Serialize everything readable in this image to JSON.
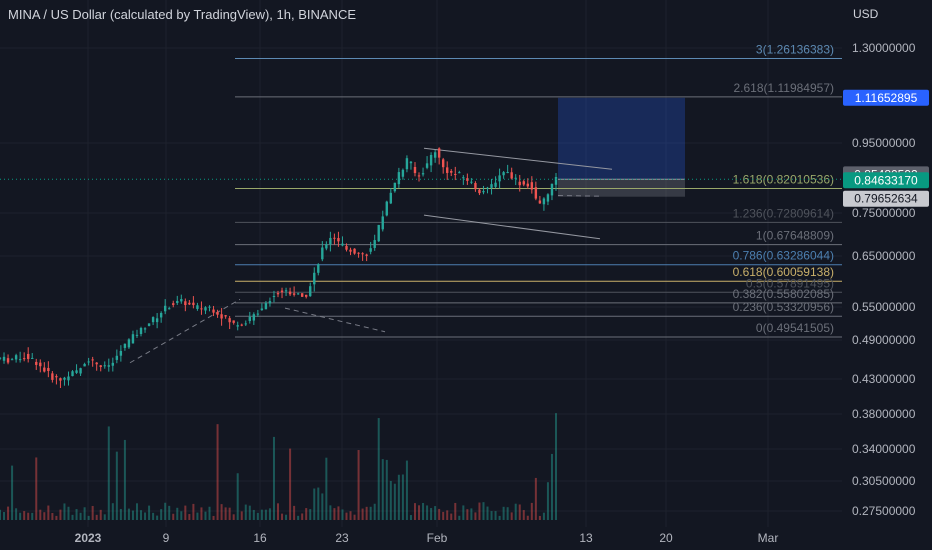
{
  "header": {
    "title": "MINA / US Dollar (calculated by TradingView), 1h, BINANCE",
    "currency": "USD"
  },
  "chart_data": {
    "type": "candlestick",
    "title": "MINA / US Dollar (calculated by TradingView), 1h, BINANCE",
    "y_axis": {
      "range": [
        0.2545,
        1.3675
      ],
      "ticks": [
        {
          "value": 1.3,
          "label": "1.30000000"
        },
        {
          "value": 0.95,
          "label": "0.95000000"
        },
        {
          "value": 0.75,
          "label": "0.75000000"
        },
        {
          "value": 0.65,
          "label": "0.65000000"
        },
        {
          "value": 0.55,
          "label": "0.55000000"
        },
        {
          "value": 0.49,
          "label": "0.49000000"
        },
        {
          "value": 0.43,
          "label": "0.43000000"
        },
        {
          "value": 0.38,
          "label": "0.38000000"
        },
        {
          "value": 0.34,
          "label": "0.34000000"
        },
        {
          "value": 0.305,
          "label": "0.30500000"
        },
        {
          "value": 0.275,
          "label": "0.27500000"
        }
      ]
    },
    "x_axis": {
      "ticks": [
        {
          "label": "2023",
          "bold": true
        },
        {
          "label": "9",
          "bold": false
        },
        {
          "label": "16",
          "bold": false
        },
        {
          "label": "23",
          "bold": false
        },
        {
          "label": "Feb",
          "bold": false
        },
        {
          "label": "13",
          "bold": false
        },
        {
          "label": "20",
          "bold": false
        },
        {
          "label": "Mar",
          "bold": false
        }
      ]
    },
    "fib_levels": [
      {
        "ratio": "3",
        "value": 1.26136383,
        "label": "3(1.26136383)",
        "color": "#5d8ab3"
      },
      {
        "ratio": "2.618",
        "value": 1.11984957,
        "label": "2.618(1.11984957)",
        "color": "#6b6f79"
      },
      {
        "ratio": "1.618",
        "value": 0.82010536,
        "label": "1.618(0.82010536)",
        "color": "#9aa86a"
      },
      {
        "ratio": "1.236",
        "value": 0.72809614,
        "label": "1.236(0.72809614)",
        "color": "#4f535c"
      },
      {
        "ratio": "1",
        "value": 0.67648809,
        "label": "1(0.67648809)",
        "color": "#6b6f79"
      },
      {
        "ratio": "0.786",
        "value": 0.63286044,
        "label": "0.786(0.63286044)",
        "color": "#4c7fb0"
      },
      {
        "ratio": "0.618",
        "value": 0.60059138,
        "label": "0.618(0.60059138)",
        "color": "#c9b06a"
      },
      {
        "ratio": "0.5",
        "value": 0.57891495,
        "label": "0.5(0.57891495)",
        "color": "#4f535c"
      },
      {
        "ratio": "0.382",
        "value": 0.55802085,
        "label": "0.382(0.55802085)",
        "color": "#6b6f79"
      },
      {
        "ratio": "0.236",
        "value": 0.53320956,
        "label": "0.236(0.53320956)",
        "color": "#6b6f79"
      },
      {
        "ratio": "0",
        "value": 0.49541505,
        "label": "0(0.49541505)",
        "color": "#6b6f79"
      }
    ],
    "price_tags": [
      {
        "value": 1.11652895,
        "label": "1.11652895",
        "bg": "#2962ff",
        "fg": "#ffffff"
      },
      {
        "value": 0.85480592,
        "label": "0.85480592",
        "bg": "#5d606b",
        "fg": "#ffffff"
      },
      {
        "value": 0.8463317,
        "label": "0.84633170",
        "bg": "#089981",
        "fg": "#ffffff"
      },
      {
        "value": 0.79652634,
        "label": "0.79652634",
        "bg": "#c8cad0",
        "fg": "#131722"
      }
    ],
    "last_price": 0.8463317,
    "position_box": {
      "entry": 0.8463317,
      "target": 1.11652895,
      "stop": 0.79652634
    },
    "price_path": [
      {
        "t": 0,
        "v": 0.462
      },
      {
        "t": 1,
        "v": 0.459
      },
      {
        "t": 2,
        "v": 0.463
      },
      {
        "t": 3,
        "v": 0.465
      },
      {
        "t": 4,
        "v": 0.458
      },
      {
        "t": 5,
        "v": 0.445
      },
      {
        "t": 6,
        "v": 0.433
      },
      {
        "t": 7,
        "v": 0.428
      },
      {
        "t": 8,
        "v": 0.438
      },
      {
        "t": 9,
        "v": 0.441
      },
      {
        "t": 10,
        "v": 0.462
      },
      {
        "t": 11,
        "v": 0.455
      },
      {
        "t": 12,
        "v": 0.447
      },
      {
        "t": 13,
        "v": 0.455
      },
      {
        "t": 14,
        "v": 0.476
      },
      {
        "t": 15,
        "v": 0.492
      },
      {
        "t": 16,
        "v": 0.505
      },
      {
        "t": 17,
        "v": 0.52
      },
      {
        "t": 18,
        "v": 0.532
      },
      {
        "t": 19,
        "v": 0.548
      },
      {
        "t": 20,
        "v": 0.557
      },
      {
        "t": 21,
        "v": 0.561
      },
      {
        "t": 22,
        "v": 0.552
      },
      {
        "t": 23,
        "v": 0.548
      },
      {
        "t": 24,
        "v": 0.551
      },
      {
        "t": 25,
        "v": 0.541
      },
      {
        "t": 26,
        "v": 0.528
      },
      {
        "t": 27,
        "v": 0.518
      },
      {
        "t": 28,
        "v": 0.522
      },
      {
        "t": 29,
        "v": 0.53
      },
      {
        "t": 30,
        "v": 0.548
      },
      {
        "t": 31,
        "v": 0.566
      },
      {
        "t": 32,
        "v": 0.578
      },
      {
        "t": 33,
        "v": 0.582
      },
      {
        "t": 34,
        "v": 0.576
      },
      {
        "t": 35,
        "v": 0.566
      },
      {
        "t": 36,
        "v": 0.605
      },
      {
        "t": 37,
        "v": 0.66
      },
      {
        "t": 38,
        "v": 0.695
      },
      {
        "t": 39,
        "v": 0.68
      },
      {
        "t": 40,
        "v": 0.668
      },
      {
        "t": 41,
        "v": 0.658
      },
      {
        "t": 42,
        "v": 0.652
      },
      {
        "t": 43,
        "v": 0.672
      },
      {
        "t": 44,
        "v": 0.745
      },
      {
        "t": 45,
        "v": 0.808
      },
      {
        "t": 46,
        "v": 0.865
      },
      {
        "t": 47,
        "v": 0.905
      },
      {
        "t": 48,
        "v": 0.85
      },
      {
        "t": 49,
        "v": 0.88
      },
      {
        "t": 50,
        "v": 0.935
      },
      {
        "t": 51,
        "v": 0.88
      },
      {
        "t": 52,
        "v": 0.862
      },
      {
        "t": 53,
        "v": 0.858
      },
      {
        "t": 54,
        "v": 0.842
      },
      {
        "t": 55,
        "v": 0.815
      },
      {
        "t": 56,
        "v": 0.812
      },
      {
        "t": 57,
        "v": 0.842
      },
      {
        "t": 58,
        "v": 0.872
      },
      {
        "t": 59,
        "v": 0.855
      },
      {
        "t": 60,
        "v": 0.832
      },
      {
        "t": 61,
        "v": 0.832
      },
      {
        "t": 62,
        "v": 0.765
      },
      {
        "t": 63,
        "v": 0.805
      },
      {
        "t": 64,
        "v": 0.846
      }
    ]
  }
}
